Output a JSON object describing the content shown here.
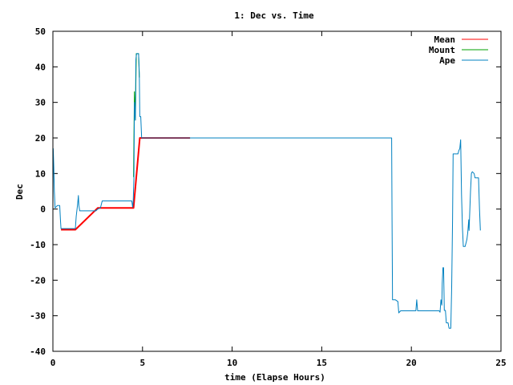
{
  "chart_data": {
    "type": "line",
    "title": "1: Dec vs. Time",
    "xlabel": "time (Elapse Hours)",
    "ylabel": "Dec",
    "xlim": [
      0,
      25
    ],
    "ylim": [
      -40,
      50
    ],
    "xticks": [
      0,
      5,
      10,
      15,
      20,
      25
    ],
    "yticks": [
      -40,
      -30,
      -20,
      -10,
      0,
      10,
      20,
      30,
      40,
      50
    ],
    "grid": false,
    "legend_position": "top-right",
    "series": [
      {
        "name": "Mean",
        "color": "#ff0000",
        "points": [
          [
            0.45,
            -5.8
          ],
          [
            1.25,
            -5.8
          ],
          [
            1.25,
            -5.8
          ],
          [
            2.5,
            0.3
          ],
          [
            2.65,
            0.3
          ],
          [
            4.4,
            0.3
          ],
          [
            4.5,
            0.3
          ],
          [
            4.85,
            20.0
          ],
          [
            7.65,
            20.0
          ]
        ]
      },
      {
        "name": "Mount",
        "color": "#00a000",
        "points": [
          [
            4.5,
            9.0
          ],
          [
            4.55,
            33.0
          ],
          [
            4.6,
            25.0
          ],
          [
            4.65,
            43.7
          ],
          [
            4.78,
            43.7
          ],
          [
            4.82,
            37.0
          ]
        ]
      },
      {
        "name": "Ape",
        "color": "#0080c0",
        "points": [
          [
            0.0,
            0.0
          ],
          [
            0.02,
            17.0
          ],
          [
            0.05,
            12.0
          ],
          [
            0.08,
            5.0
          ],
          [
            0.12,
            0.3
          ],
          [
            0.25,
            1.0
          ],
          [
            0.38,
            1.0
          ],
          [
            0.42,
            -3.0
          ],
          [
            0.45,
            -5.5
          ],
          [
            1.25,
            -5.5
          ],
          [
            1.3,
            -2.0
          ],
          [
            1.38,
            1.5
          ],
          [
            1.42,
            3.8
          ],
          [
            1.45,
            1.0
          ],
          [
            1.5,
            -0.5
          ],
          [
            2.4,
            -0.5
          ],
          [
            2.5,
            0.0
          ],
          [
            2.65,
            0.3
          ],
          [
            2.75,
            2.3
          ],
          [
            4.4,
            2.3
          ],
          [
            4.45,
            0.5
          ],
          [
            4.48,
            2.3
          ],
          [
            4.52,
            9.0
          ],
          [
            4.55,
            30.0
          ],
          [
            4.6,
            25.0
          ],
          [
            4.63,
            42.0
          ],
          [
            4.67,
            43.7
          ],
          [
            4.78,
            43.7
          ],
          [
            4.82,
            38.0
          ],
          [
            4.85,
            26.0
          ],
          [
            4.9,
            26.0
          ],
          [
            4.95,
            20.0
          ],
          [
            18.9,
            20.0
          ],
          [
            18.92,
            -3.0
          ],
          [
            18.95,
            -25.5
          ],
          [
            19.1,
            -25.5
          ],
          [
            19.25,
            -26.0
          ],
          [
            19.3,
            -29.2
          ],
          [
            19.4,
            -28.6
          ],
          [
            20.25,
            -28.6
          ],
          [
            20.3,
            -25.5
          ],
          [
            20.35,
            -28.6
          ],
          [
            21.55,
            -28.6
          ],
          [
            21.6,
            -29.0
          ],
          [
            21.65,
            -25.5
          ],
          [
            21.7,
            -27.0
          ],
          [
            21.72,
            -21.0
          ],
          [
            21.76,
            -16.5
          ],
          [
            21.8,
            -16.5
          ],
          [
            21.84,
            -28.5
          ],
          [
            21.9,
            -28.5
          ],
          [
            21.95,
            -32.0
          ],
          [
            22.05,
            -32.0
          ],
          [
            22.1,
            -33.5
          ],
          [
            22.2,
            -33.5
          ],
          [
            22.25,
            -22.0
          ],
          [
            22.28,
            -10.0
          ],
          [
            22.3,
            -3.0
          ],
          [
            22.33,
            15.5
          ],
          [
            22.6,
            15.5
          ],
          [
            22.65,
            16.5
          ],
          [
            22.7,
            17.0
          ],
          [
            22.75,
            19.5
          ],
          [
            22.8,
            4.0
          ],
          [
            22.85,
            -5.0
          ],
          [
            22.9,
            -10.5
          ],
          [
            23.0,
            -10.5
          ],
          [
            23.1,
            -8.5
          ],
          [
            23.15,
            -6.5
          ],
          [
            23.2,
            -3.0
          ],
          [
            23.22,
            -6.0
          ],
          [
            23.3,
            5.0
          ],
          [
            23.35,
            10.0
          ],
          [
            23.4,
            10.5
          ],
          [
            23.5,
            10.0
          ],
          [
            23.55,
            8.8
          ],
          [
            23.75,
            8.8
          ],
          [
            23.8,
            0.0
          ],
          [
            23.85,
            -6.0
          ]
        ]
      }
    ]
  }
}
